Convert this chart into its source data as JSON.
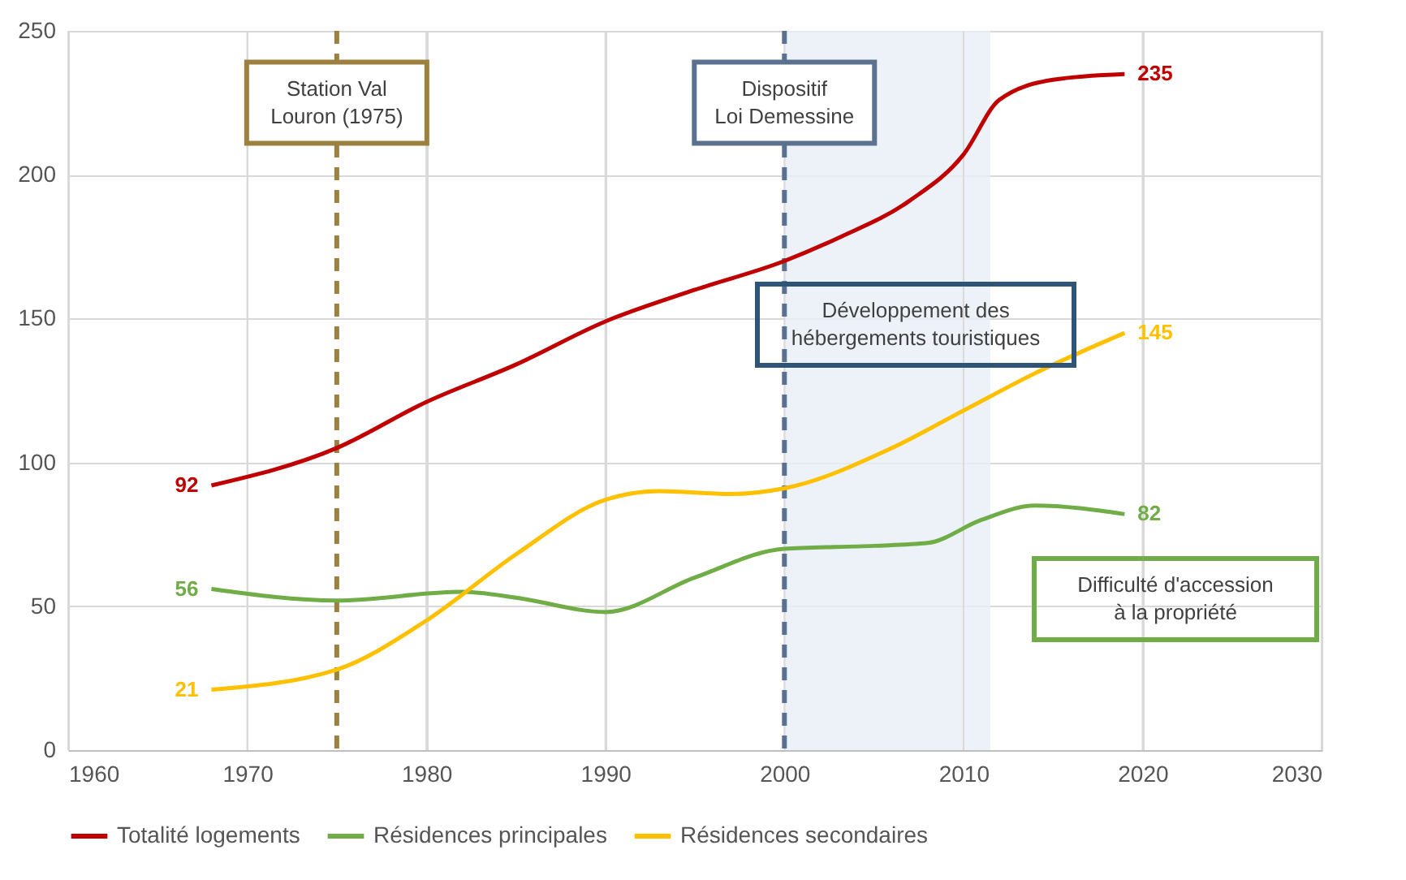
{
  "chart_data": {
    "type": "line",
    "x": [
      1968,
      1975,
      1980,
      1985,
      1990,
      1995,
      2000,
      2003,
      2007,
      2010,
      2012,
      2015,
      2019
    ],
    "series": [
      {
        "name": "Totalité logements",
        "color": "#c00000",
        "values": [
          92,
          105,
          121,
          134,
          149,
          160,
          170,
          178,
          191,
          207,
          226,
          233,
          235
        ],
        "value_labels": [
          "92",
          null,
          null,
          null,
          null,
          null,
          null,
          null,
          null,
          null,
          null,
          null,
          "235"
        ]
      },
      {
        "name": "Résidences principales",
        "color": "#70ad47",
        "x": [
          1968,
          1975,
          1982,
          1985,
          1990,
          1995,
          2000,
          2005,
          2008,
          2011,
          2014,
          2019
        ],
        "values": [
          56,
          52,
          55,
          53,
          48,
          60,
          70,
          71,
          72,
          80,
          85,
          82
        ],
        "value_labels": [
          "56",
          null,
          null,
          null,
          null,
          null,
          null,
          null,
          null,
          null,
          null,
          "82"
        ]
      },
      {
        "name": "Résidences secondaires",
        "color": "#ffc000",
        "x": [
          1968,
          1975,
          1980,
          1985,
          1990,
          1993,
          1997,
          2000,
          2006,
          2010,
          2014,
          2019
        ],
        "values": [
          21,
          28,
          45,
          68,
          87,
          90,
          89,
          91,
          105,
          118,
          131,
          145
        ],
        "value_labels": [
          "21",
          null,
          null,
          null,
          null,
          null,
          null,
          null,
          null,
          null,
          null,
          "145"
        ]
      }
    ],
    "xlim": [
      1960,
      2030
    ],
    "xticks": [
      1960,
      1970,
      1980,
      1990,
      2000,
      2010,
      2020,
      2030
    ],
    "ylim": [
      0,
      250
    ],
    "yticks": [
      0,
      50,
      100,
      150,
      200,
      250
    ],
    "grid": true,
    "legend": "bottom",
    "marker": "none",
    "line_style": "solid",
    "ref_lines": [
      {
        "axis": "x",
        "value": 1975,
        "label": "Station Val\nLouron (1975)",
        "color": "#9c8040",
        "line_style": "dashed"
      },
      {
        "axis": "x",
        "value": 2000,
        "label": "Dispositif\nLoi Demessine",
        "color": "#5a7290",
        "line_style": "dashed"
      }
    ],
    "bands": [
      {
        "axis": "x",
        "from": 2000,
        "to": 2011.5,
        "color": "#e8eff8"
      }
    ],
    "annotations": [
      "Développement des\nhébergements touristiques",
      "Difficulté d'accession\nà la propriété"
    ]
  }
}
